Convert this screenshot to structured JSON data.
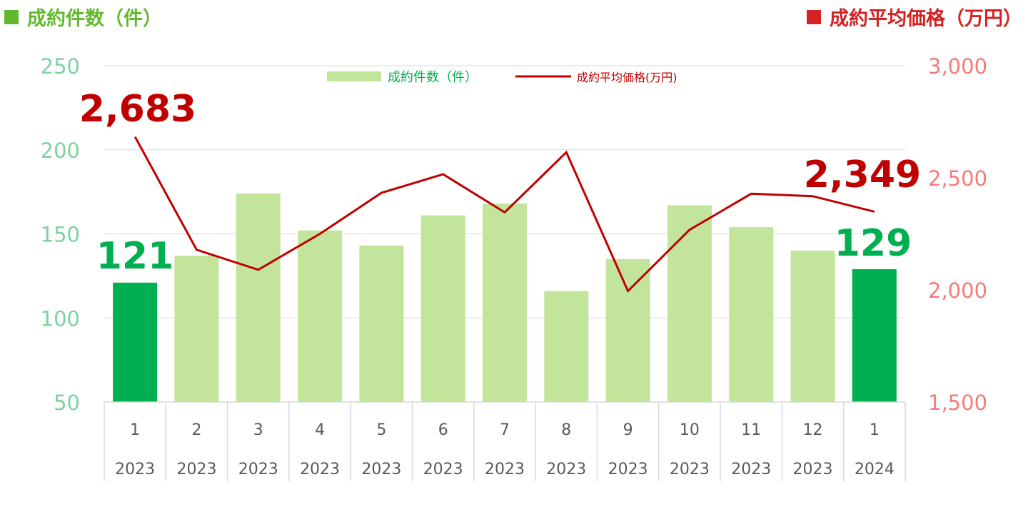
{
  "header_left": {
    "label": "成約件数（件）",
    "color": "#63b92e"
  },
  "header_right": {
    "label": "成約平均価格（万円）",
    "color": "#d42121"
  },
  "chart_data": {
    "type": "bar+line",
    "categories": [
      {
        "month": "1",
        "year": "2023"
      },
      {
        "month": "2",
        "year": "2023"
      },
      {
        "month": "3",
        "year": "2023"
      },
      {
        "month": "4",
        "year": "2023"
      },
      {
        "month": "5",
        "year": "2023"
      },
      {
        "month": "6",
        "year": "2023"
      },
      {
        "month": "7",
        "year": "2023"
      },
      {
        "month": "8",
        "year": "2023"
      },
      {
        "month": "9",
        "year": "2023"
      },
      {
        "month": "10",
        "year": "2023"
      },
      {
        "month": "11",
        "year": "2023"
      },
      {
        "month": "12",
        "year": "2023"
      },
      {
        "month": "1",
        "year": "2024"
      }
    ],
    "series": [
      {
        "name": "成約件数（件）",
        "type": "bar",
        "axis": "left",
        "values": [
          121,
          137,
          174,
          152,
          143,
          161,
          168,
          116,
          135,
          167,
          154,
          140,
          129
        ],
        "color": "#c3e59b",
        "highlight_color": "#00b050",
        "highlight_indices": [
          0,
          12
        ]
      },
      {
        "name": "成約平均価格(万円)",
        "type": "line",
        "axis": "right",
        "values": [
          2683,
          2179,
          2090,
          2250,
          2433,
          2516,
          2346,
          2614,
          1995,
          2268,
          2429,
          2418,
          2349
        ],
        "color": "#c00000"
      }
    ],
    "y_left": {
      "min": 50,
      "max": 250,
      "ticks": [
        "50",
        "100",
        "150",
        "200",
        "250"
      ],
      "color": "#7dd3a0"
    },
    "y_right": {
      "min": 1500,
      "max": 3000,
      "ticks": [
        "1,500",
        "2,000",
        "2,500",
        "3,000"
      ],
      "color": "#f47b7b"
    },
    "grid": true,
    "legend_position": "top-center",
    "annotations": [
      {
        "text": "121",
        "series": 0,
        "index": 0,
        "color": "#00b050"
      },
      {
        "text": "129",
        "series": 0,
        "index": 12,
        "color": "#00b050"
      },
      {
        "text": "2,683",
        "series": 1,
        "index": 0,
        "color": "#c00000"
      },
      {
        "text": "2,349",
        "series": 1,
        "index": 12,
        "color": "#c00000"
      }
    ]
  }
}
